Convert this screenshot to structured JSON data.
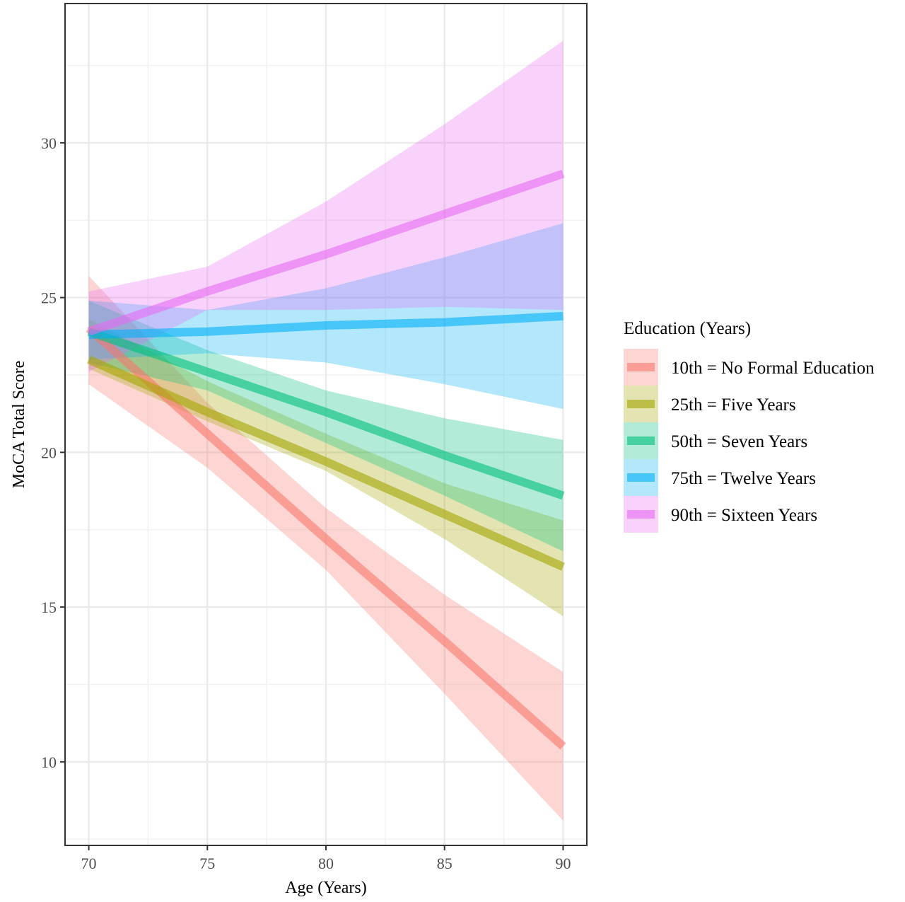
{
  "chart_data": {
    "type": "line",
    "title": "",
    "xlabel": "Age (Years)",
    "ylabel": "MoCA Total Score",
    "xlim": [
      69,
      91
    ],
    "ylim": [
      7.3,
      34.5
    ],
    "x_ticks": [
      "70",
      "75",
      "80",
      "85",
      "90"
    ],
    "y_ticks": [
      "10",
      "15",
      "20",
      "25",
      "30"
    ],
    "grid": true,
    "legend": {
      "title": "Education (Years)",
      "placement": "right"
    },
    "x": [
      70,
      75,
      80,
      85,
      90
    ],
    "series": [
      {
        "name": "10th = No Formal Education",
        "color": "#F8766D",
        "values": [
          24.0,
          20.6,
          17.2,
          13.9,
          10.5
        ],
        "lower": [
          22.2,
          19.5,
          16.2,
          12.2,
          8.1
        ],
        "upper": [
          25.7,
          21.6,
          18.2,
          15.4,
          12.9
        ]
      },
      {
        "name": "25th = Five Years",
        "color": "#A3A500",
        "values": [
          23.0,
          21.3,
          19.7,
          18.0,
          16.3
        ],
        "lower": [
          22.7,
          21.0,
          19.4,
          17.2,
          14.7
        ],
        "upper": [
          24.3,
          22.3,
          20.6,
          19.0,
          17.8
        ]
      },
      {
        "name": "50th = Seven Years",
        "color": "#00BF7D",
        "values": [
          23.9,
          22.6,
          21.3,
          19.9,
          18.6
        ],
        "lower": [
          22.9,
          22.0,
          20.3,
          18.6,
          16.8
        ],
        "upper": [
          24.9,
          23.3,
          22.0,
          21.1,
          20.4
        ]
      },
      {
        "name": "75th = Twelve Years",
        "color": "#00B0F6",
        "values": [
          23.8,
          23.9,
          24.1,
          24.2,
          24.4
        ],
        "lower": [
          23.0,
          23.2,
          22.9,
          22.2,
          21.4
        ],
        "upper": [
          24.9,
          24.6,
          25.3,
          26.3,
          27.4
        ]
      },
      {
        "name": "90th = Sixteen Years",
        "color": "#E76BF3",
        "values": [
          23.9,
          25.2,
          26.4,
          27.7,
          29.0
        ],
        "lower": [
          22.6,
          24.6,
          24.6,
          24.7,
          24.6
        ],
        "upper": [
          25.2,
          26.0,
          28.1,
          30.6,
          33.3
        ]
      }
    ]
  }
}
